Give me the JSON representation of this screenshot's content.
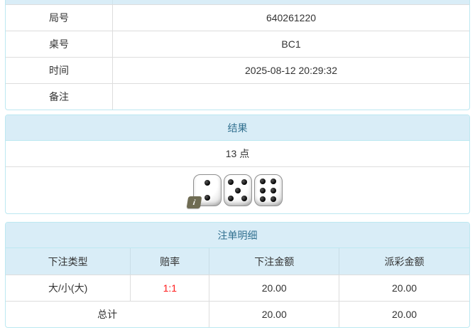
{
  "colors": {
    "panel_border": "#bce8f1",
    "heading_bg": "#d9edf7",
    "heading_text": "#31708f",
    "row_border": "#dddddd",
    "body_text": "#333333",
    "odds_red": "#ff1a1a",
    "info_badge_bg": "#6f6c53"
  },
  "info_table": {
    "rows": [
      {
        "label": "局号",
        "value": "640261220"
      },
      {
        "label": "桌号",
        "value": "BC1"
      },
      {
        "label": "时间",
        "value": "2025-08-12 20:29:32"
      },
      {
        "label": "备注",
        "value": ""
      }
    ]
  },
  "result_panel": {
    "title": "结果",
    "points": "13 点",
    "dice": [
      2,
      5,
      6
    ],
    "info_badge": "i"
  },
  "bets_panel": {
    "title": "注单明细",
    "columns": [
      "下注类型",
      "赔率",
      "下注金额",
      "派彩金额"
    ],
    "rows": [
      {
        "type": "大/小(大)",
        "odds": "1:1",
        "bet": "20.00",
        "payout": "20.00"
      }
    ],
    "total": {
      "label": "总计",
      "bet": "20.00",
      "payout": "20.00"
    }
  }
}
